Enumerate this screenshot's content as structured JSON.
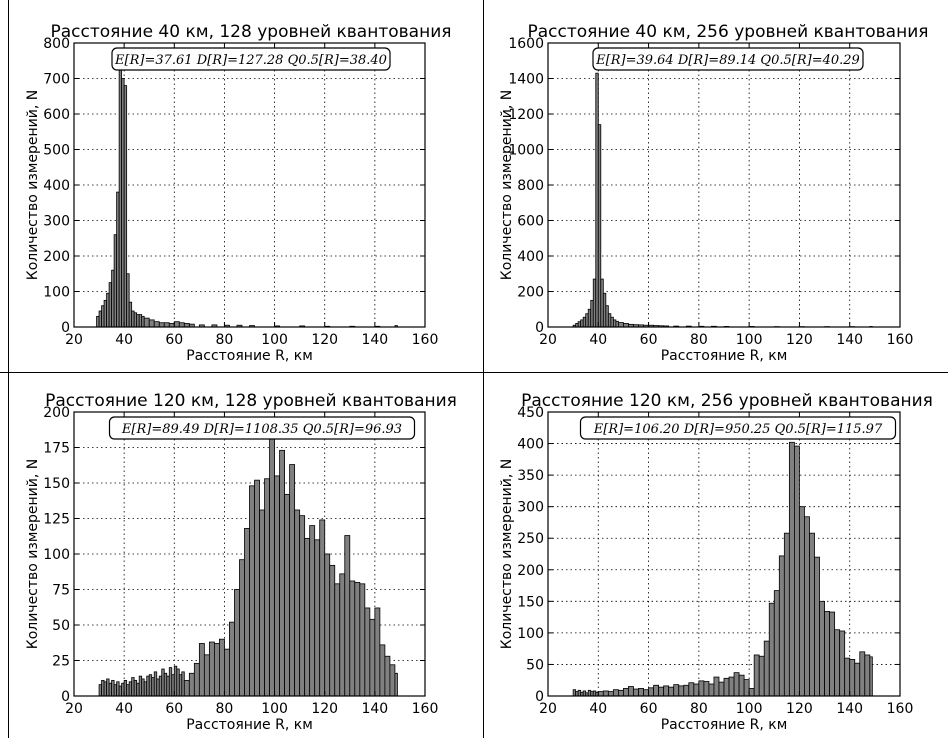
{
  "chart_data": [
    {
      "type": "bar",
      "title": "Расстояние 40 км, 128 уровней квантования",
      "annotation": "E[R]=37.61 D[R]=127.28 Q0.5[R]=38.40",
      "xlabel": "Расстояние R, км",
      "ylabel": "Количество измерений, N",
      "xlim": [
        20,
        160
      ],
      "ylim": [
        0,
        800
      ],
      "xticks": [
        "20",
        "40",
        "60",
        "80",
        "100",
        "120",
        "140",
        "160"
      ],
      "yticks": [
        "0",
        "100",
        "200",
        "300",
        "400",
        "500",
        "600",
        "700",
        "800"
      ],
      "grid": true,
      "x": [
        29,
        30,
        31,
        32,
        33,
        34,
        35,
        36,
        37,
        38,
        39,
        40,
        41,
        42,
        43,
        44,
        45,
        46,
        47,
        48,
        50,
        52,
        54,
        56,
        58,
        60,
        62,
        64,
        66,
        70,
        75,
        80,
        85,
        90,
        100,
        110,
        120,
        130,
        140,
        148
      ],
      "values": [
        30,
        45,
        60,
        75,
        95,
        125,
        160,
        260,
        380,
        725,
        700,
        680,
        150,
        70,
        45,
        40,
        35,
        35,
        30,
        25,
        20,
        15,
        12,
        12,
        10,
        15,
        12,
        10,
        8,
        6,
        6,
        5,
        5,
        4,
        3,
        3,
        2,
        2,
        2,
        4
      ]
    },
    {
      "type": "bar",
      "title": "Расстояние 40 км, 256 уровней квантования",
      "annotation": "E[R]=39.64 D[R]=89.14 Q0.5[R]=40.29",
      "xlabel": "Расстояние R, км",
      "ylabel": "Количество измерений, N",
      "xlim": [
        20,
        160
      ],
      "ylim": [
        0,
        1600
      ],
      "xticks": [
        "20",
        "40",
        "60",
        "80",
        "100",
        "120",
        "140",
        "160"
      ],
      "yticks": [
        "0",
        "200",
        "400",
        "600",
        "800",
        "1000",
        "1200",
        "1400",
        "1600"
      ],
      "grid": true,
      "x": [
        30,
        31,
        32,
        33,
        34,
        35,
        36,
        37,
        38,
        39,
        40,
        41,
        42,
        43,
        44,
        45,
        46,
        47,
        48,
        50,
        52,
        54,
        56,
        58,
        60,
        62,
        64,
        66,
        70,
        75,
        80,
        85,
        90,
        100,
        110,
        120,
        130,
        140,
        148
      ],
      "values": [
        10,
        20,
        30,
        40,
        55,
        75,
        100,
        150,
        270,
        1430,
        1140,
        270,
        190,
        120,
        75,
        55,
        40,
        32,
        25,
        20,
        15,
        13,
        12,
        10,
        10,
        8,
        7,
        6,
        5,
        5,
        4,
        4,
        3,
        3,
        2,
        2,
        2,
        2,
        3
      ]
    },
    {
      "type": "bar",
      "title": "Расстояние 120 км, 128 уровней квантования",
      "annotation": "E[R]=89.49 D[R]=1108.35 Q0.5[R]=96.93",
      "xlabel": "Расстояние R, км",
      "ylabel": "Количество измерений, N",
      "xlim": [
        20,
        160
      ],
      "ylim": [
        0,
        200
      ],
      "xticks": [
        "20",
        "40",
        "60",
        "80",
        "100",
        "120",
        "140",
        "160"
      ],
      "yticks": [
        "0",
        "25",
        "50",
        "75",
        "100",
        "125",
        "150",
        "175",
        "200"
      ],
      "grid": true,
      "x": [
        30,
        31,
        32,
        33,
        34,
        35,
        36,
        37,
        38,
        39,
        40,
        41,
        42,
        43,
        44,
        45,
        46,
        47,
        48,
        49,
        50,
        51,
        52,
        53,
        54,
        55,
        56,
        57,
        58,
        59,
        60,
        61,
        62,
        63,
        64,
        66,
        68,
        70,
        72,
        74,
        76,
        78,
        80,
        82,
        84,
        86,
        88,
        90,
        92,
        94,
        96,
        98,
        100,
        102,
        104,
        106,
        108,
        110,
        112,
        114,
        116,
        118,
        120,
        122,
        124,
        126,
        128,
        130,
        132,
        134,
        136,
        138,
        140,
        142,
        144,
        146,
        148
      ],
      "values": [
        8,
        11,
        10,
        12,
        9,
        11,
        8,
        10,
        7,
        9,
        11,
        8,
        10,
        13,
        11,
        9,
        14,
        12,
        10,
        14,
        15,
        13,
        17,
        12,
        14,
        19,
        16,
        14,
        20,
        15,
        21,
        19,
        15,
        17,
        11,
        16,
        23,
        37,
        29,
        38,
        37,
        40,
        33,
        52,
        75,
        96,
        118,
        148,
        152,
        131,
        153,
        190,
        155,
        173,
        142,
        163,
        131,
        127,
        111,
        120,
        110,
        124,
        100,
        92,
        79,
        86,
        113,
        81,
        80,
        79,
        62,
        54,
        62,
        36,
        28,
        22,
        16
      ]
    },
    {
      "type": "bar",
      "title": "Расстояние 120 км, 256 уровней квантования",
      "annotation": "E[R]=106.20 D[R]=950.25 Q0.5[R]=115.97",
      "xlabel": "Расстояние R, км",
      "ylabel": "Количество измерений, N",
      "xlim": [
        20,
        160
      ],
      "ylim": [
        0,
        450
      ],
      "xticks": [
        "20",
        "40",
        "60",
        "80",
        "100",
        "120",
        "140",
        "160"
      ],
      "yticks": [
        "0",
        "50",
        "100",
        "150",
        "200",
        "250",
        "300",
        "350",
        "400",
        "450"
      ],
      "grid": true,
      "x": [
        30,
        31,
        32,
        33,
        34,
        35,
        36,
        37,
        38,
        39,
        40,
        42,
        44,
        46,
        48,
        50,
        52,
        54,
        56,
        58,
        60,
        62,
        64,
        66,
        68,
        70,
        72,
        74,
        76,
        78,
        80,
        82,
        84,
        86,
        88,
        90,
        92,
        94,
        96,
        98,
        100,
        102,
        104,
        106,
        108,
        110,
        112,
        114,
        116,
        118,
        120,
        122,
        124,
        126,
        128,
        130,
        132,
        134,
        136,
        138,
        140,
        142,
        144,
        146,
        148
      ],
      "values": [
        10,
        7,
        9,
        6,
        8,
        5,
        9,
        7,
        8,
        6,
        7,
        8,
        7,
        10,
        9,
        12,
        15,
        11,
        12,
        10,
        13,
        17,
        14,
        16,
        14,
        18,
        16,
        17,
        21,
        19,
        24,
        23,
        19,
        30,
        22,
        28,
        30,
        37,
        33,
        26,
        12,
        65,
        63,
        87,
        147,
        167,
        222,
        258,
        402,
        396,
        300,
        284,
        258,
        220,
        150,
        134,
        133,
        105,
        103,
        60,
        58,
        52,
        70,
        65,
        62
      ]
    }
  ]
}
